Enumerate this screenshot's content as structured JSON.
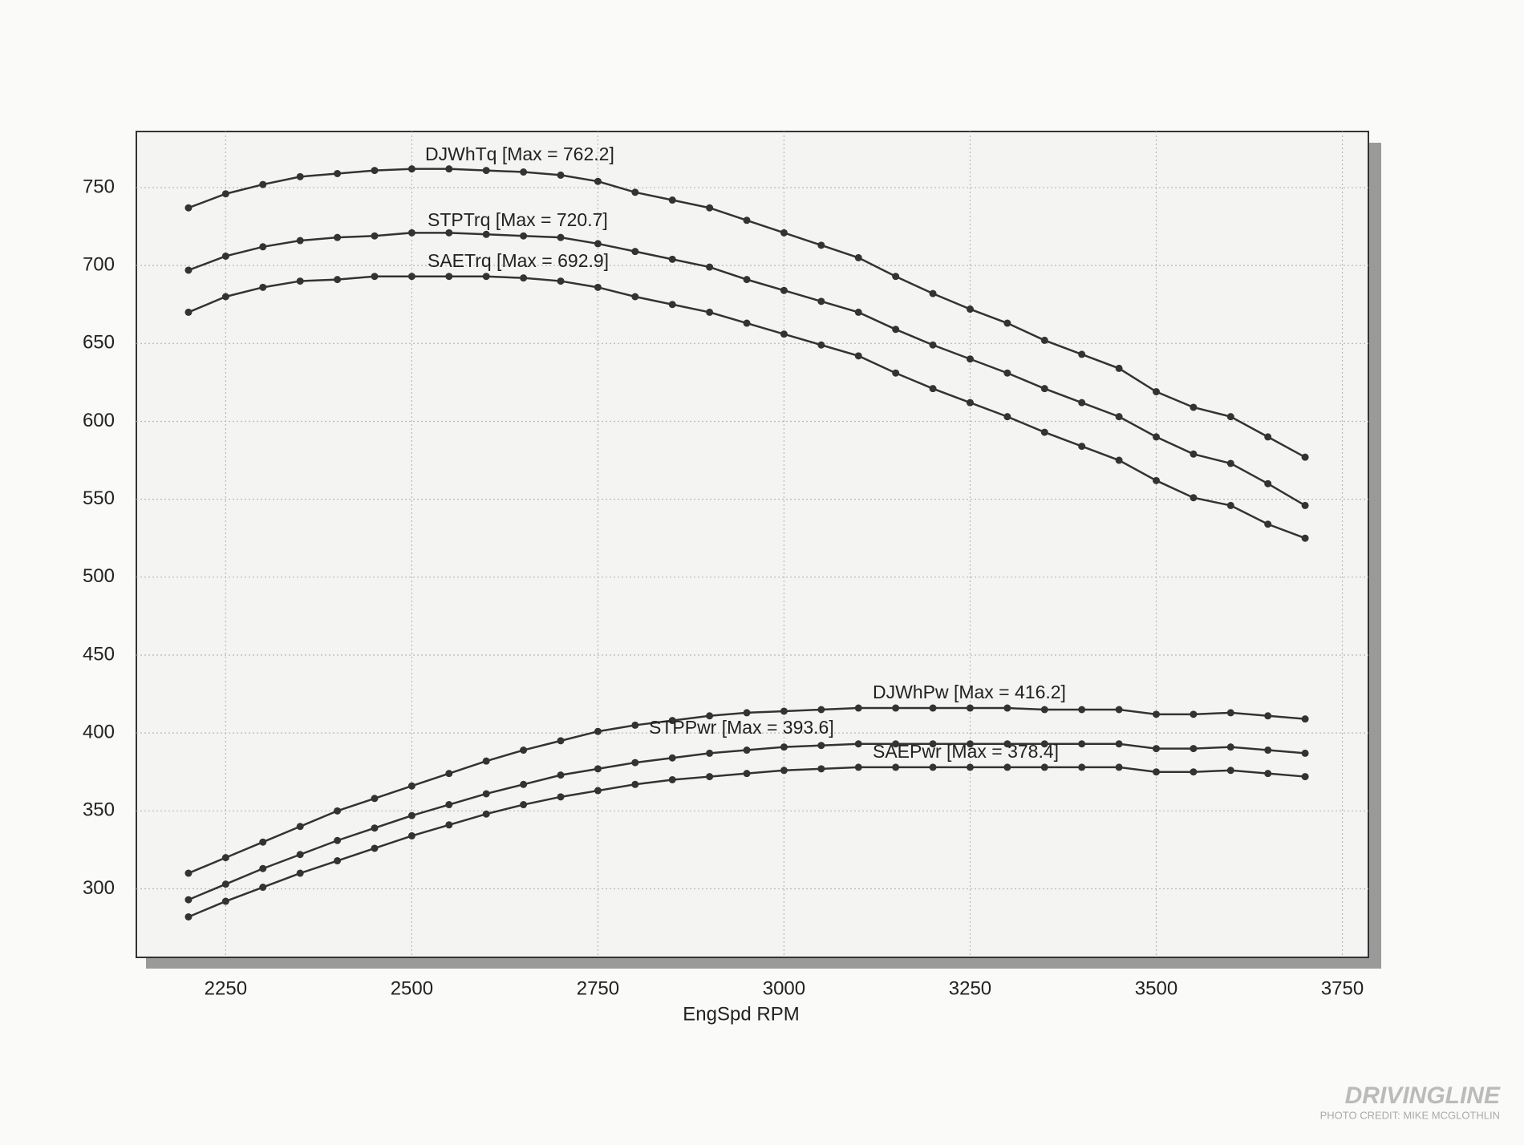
{
  "chart_data": {
    "type": "line",
    "xlabel": "EngSpd  RPM",
    "x": [
      2200,
      2250,
      2300,
      2350,
      2400,
      2450,
      2500,
      2550,
      2600,
      2650,
      2700,
      2750,
      2800,
      2850,
      2900,
      2950,
      3000,
      3050,
      3100,
      3150,
      3200,
      3250,
      3300,
      3350,
      3400,
      3450,
      3500,
      3550,
      3600,
      3650,
      3700
    ],
    "series": [
      {
        "name": "DJWhTq [Max = 762.2]",
        "color": "#333333",
        "values": [
          737,
          746,
          752,
          757,
          759,
          761,
          762,
          762,
          761,
          760,
          758,
          754,
          747,
          742,
          737,
          729,
          721,
          713,
          705,
          693,
          682,
          672,
          663,
          652,
          643,
          634,
          619,
          609,
          603,
          590,
          577
        ]
      },
      {
        "name": "STPTrq [Max = 720.7]",
        "color": "#333333",
        "values": [
          697,
          706,
          712,
          716,
          718,
          719,
          721,
          721,
          720,
          719,
          718,
          714,
          709,
          704,
          699,
          691,
          684,
          677,
          670,
          659,
          649,
          640,
          631,
          621,
          612,
          603,
          590,
          579,
          573,
          560,
          546
        ]
      },
      {
        "name": "SAETrq [Max = 692.9]",
        "color": "#333333",
        "values": [
          670,
          680,
          686,
          690,
          691,
          693,
          693,
          693,
          693,
          692,
          690,
          686,
          680,
          675,
          670,
          663,
          656,
          649,
          642,
          631,
          621,
          612,
          603,
          593,
          584,
          575,
          562,
          551,
          546,
          534,
          525
        ]
      },
      {
        "name": "DJWhPw [Max = 416.2]",
        "color": "#333333",
        "values": [
          310,
          320,
          330,
          340,
          350,
          358,
          366,
          374,
          382,
          389,
          395,
          401,
          405,
          408,
          411,
          413,
          414,
          415,
          416,
          416,
          416,
          416,
          416,
          415,
          415,
          415,
          412,
          412,
          413,
          411,
          409
        ]
      },
      {
        "name": "STPPwr [Max = 393.6]",
        "color": "#333333",
        "values": [
          293,
          303,
          313,
          322,
          331,
          339,
          347,
          354,
          361,
          367,
          373,
          377,
          381,
          384,
          387,
          389,
          391,
          392,
          393,
          393,
          393,
          393,
          393,
          393,
          393,
          393,
          390,
          390,
          391,
          389,
          387
        ]
      },
      {
        "name": "SAEPwr [Max = 378.4]",
        "color": "#333333",
        "values": [
          282,
          292,
          301,
          310,
          318,
          326,
          334,
          341,
          348,
          354,
          359,
          363,
          367,
          370,
          372,
          374,
          376,
          377,
          378,
          378,
          378,
          378,
          378,
          378,
          378,
          378,
          375,
          375,
          376,
          374,
          372
        ]
      }
    ],
    "xlim": [
      2130,
      3785
    ],
    "xticks": [
      2250,
      2500,
      2750,
      3000,
      3250,
      3500,
      3750
    ],
    "ylim": [
      256,
      786
    ],
    "yticks": [
      300,
      350,
      400,
      450,
      500,
      550,
      600,
      650,
      700,
      750
    ],
    "grid": true
  },
  "credit": {
    "brand": "DRIVINGLINE",
    "photo": "PHOTO CREDIT: MIKE MCGLOTHLIN"
  }
}
